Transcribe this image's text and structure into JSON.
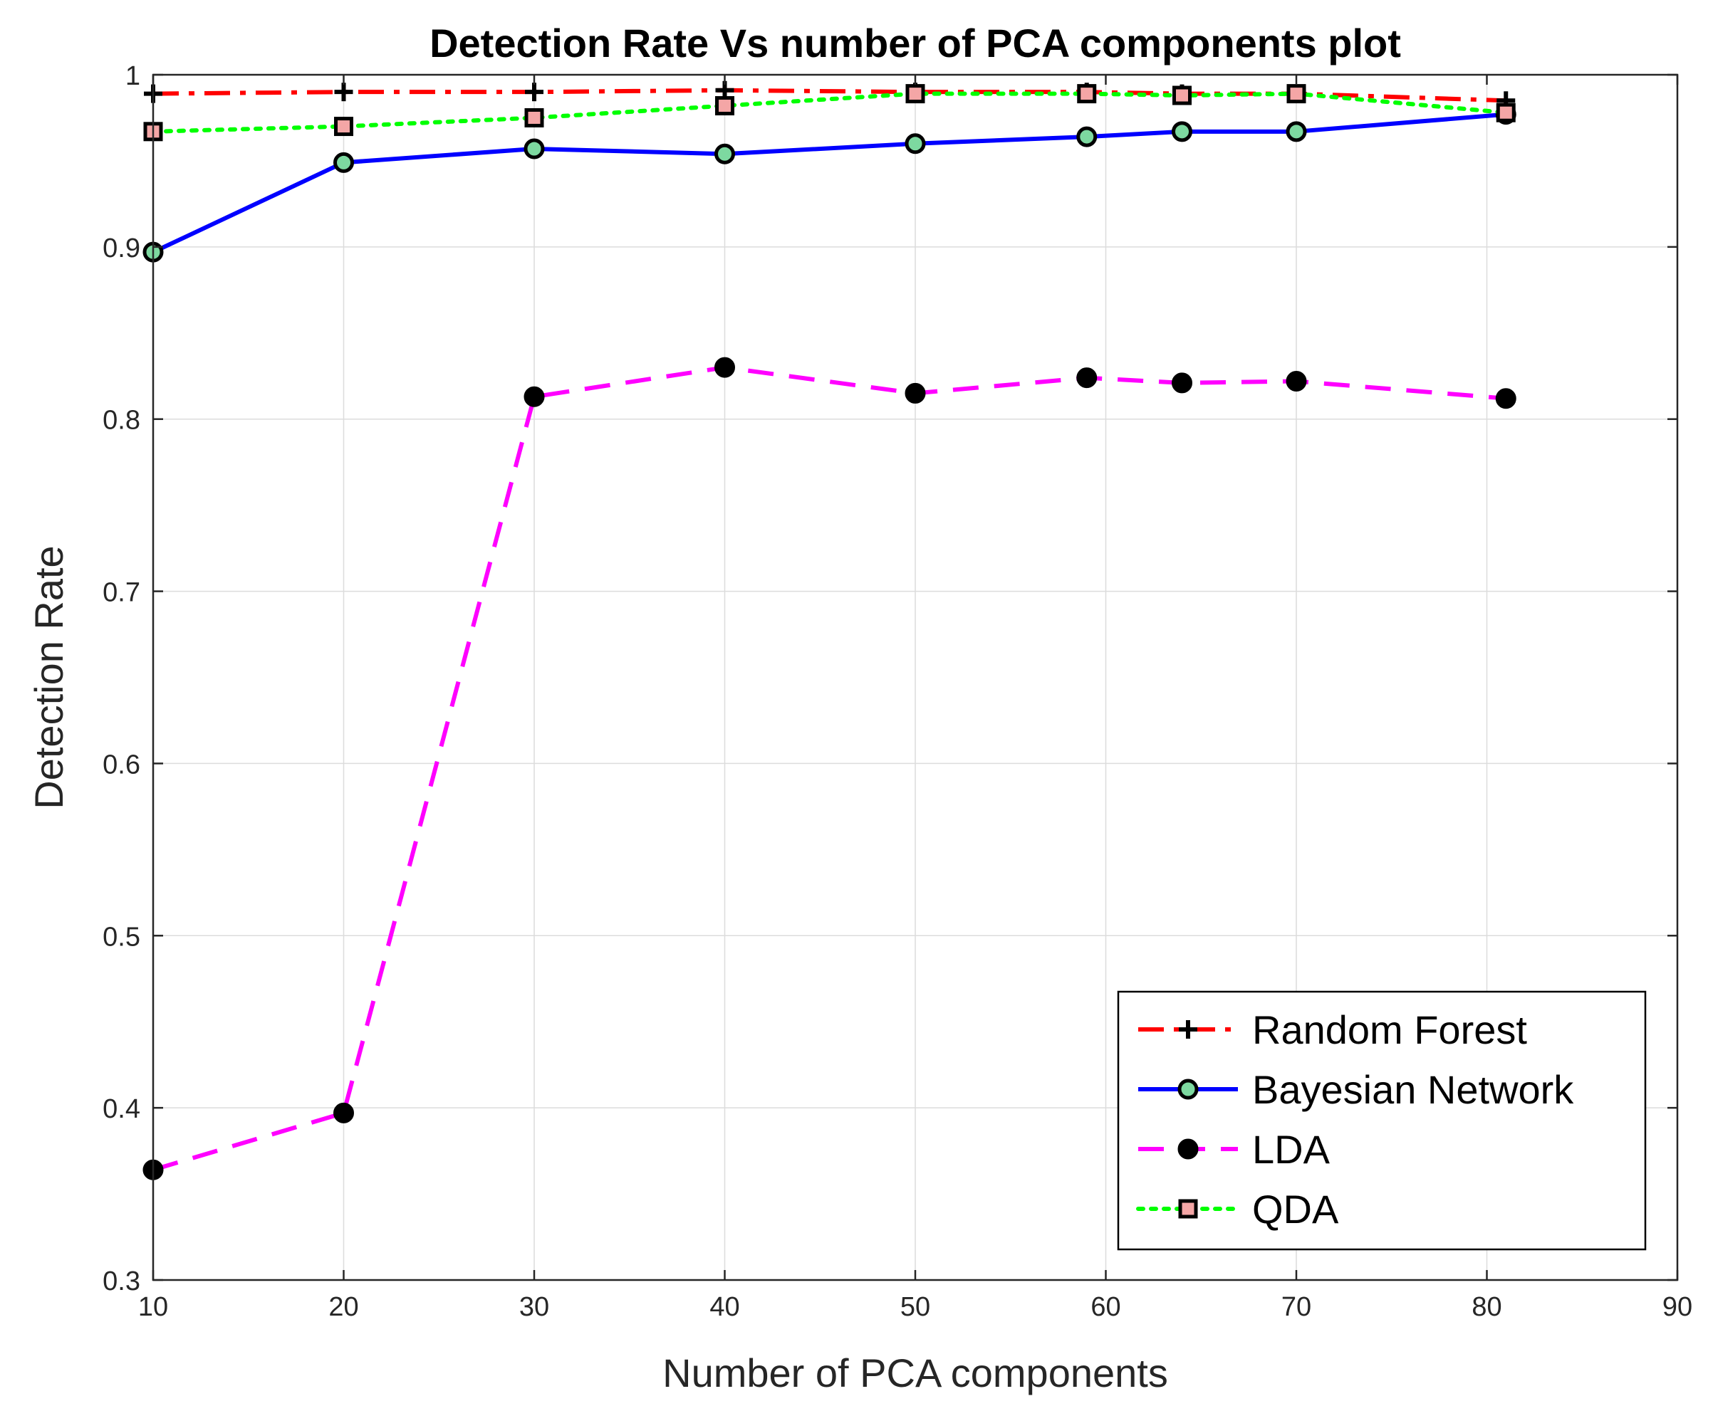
{
  "chart_data": {
    "type": "line",
    "title": "Detection Rate Vs number of PCA components plot",
    "xlabel": "Number of PCA components",
    "ylabel": "Detection Rate",
    "xlim": [
      10,
      90
    ],
    "ylim": [
      0.3,
      1.0
    ],
    "xticks": [
      "10",
      "20",
      "30",
      "40",
      "50",
      "60",
      "70",
      "80",
      "90"
    ],
    "yticks": [
      "0.3",
      "0.4",
      "0.5",
      "0.6",
      "0.7",
      "0.8",
      "0.9",
      "1"
    ],
    "grid": true,
    "legend_location": "bottom-right",
    "x": [
      10,
      20,
      30,
      40,
      50,
      59,
      64,
      70,
      81
    ],
    "series": [
      {
        "name": "Random Forest",
        "values": [
          0.989,
          0.99,
          0.99,
          0.991,
          0.99,
          0.99,
          0.989,
          0.989,
          0.985
        ],
        "color": "#ff0000",
        "line_style": "dash-dot",
        "marker": "plus",
        "marker_edge": "#000000",
        "marker_face": "none"
      },
      {
        "name": "Bayesian Network",
        "values": [
          0.897,
          0.949,
          0.957,
          0.954,
          0.96,
          0.964,
          0.967,
          0.967,
          0.977
        ],
        "color": "#0000ff",
        "line_style": "solid",
        "marker": "circle",
        "marker_edge": "#000000",
        "marker_face": "#7dd9a0"
      },
      {
        "name": "LDA",
        "values": [
          0.364,
          0.397,
          0.813,
          0.83,
          0.815,
          0.824,
          0.821,
          0.822,
          0.812
        ],
        "color": "#ff00ff",
        "line_style": "dashed",
        "marker": "circle",
        "marker_edge": "#000000",
        "marker_face": "#000000"
      },
      {
        "name": "QDA",
        "values": [
          0.967,
          0.97,
          0.975,
          0.982,
          0.989,
          0.989,
          0.988,
          0.989,
          0.978
        ],
        "color": "#00ff00",
        "line_style": "dotted",
        "marker": "square",
        "marker_edge": "#000000",
        "marker_face": "#f4a6a6"
      }
    ]
  }
}
